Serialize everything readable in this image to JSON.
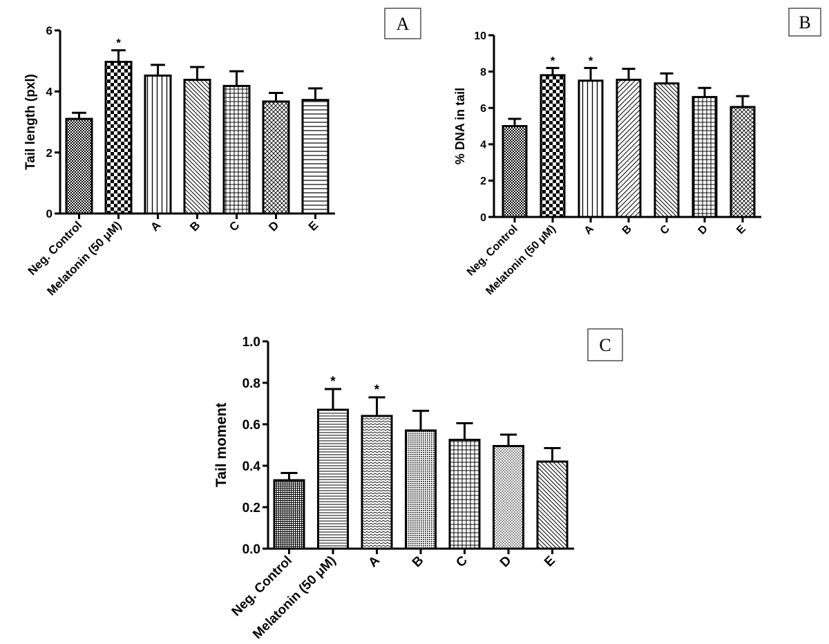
{
  "chart_data": [
    {
      "type": "bar",
      "panel": "A",
      "title": "",
      "xlabel": "",
      "ylabel": "Tail length (pxl)",
      "ylim": [
        0,
        6
      ],
      "yticks": [
        0,
        2,
        4,
        6
      ],
      "grid": false,
      "categories": [
        "Neg. Control",
        "Melatonin (50 μM)",
        "A",
        "B",
        "C",
        "D",
        "E"
      ],
      "values": [
        3.1,
        4.97,
        4.52,
        4.38,
        4.18,
        3.67,
        3.72
      ],
      "errors": [
        0.2,
        0.38,
        0.35,
        0.42,
        0.48,
        0.28,
        0.38
      ],
      "annotations": [
        "",
        "*",
        "",
        "",
        "",
        "",
        ""
      ]
    },
    {
      "type": "bar",
      "panel": "B",
      "title": "",
      "xlabel": "",
      "ylabel": "% DNA in tail",
      "ylim": [
        0,
        10
      ],
      "yticks": [
        0,
        2,
        4,
        6,
        8,
        10
      ],
      "grid": false,
      "categories": [
        "Neg. Control",
        "Melatonin (50 μM)",
        "A",
        "B",
        "C",
        "D",
        "E"
      ],
      "values": [
        5.0,
        7.8,
        7.5,
        7.55,
        7.35,
        6.6,
        6.05
      ],
      "errors": [
        0.4,
        0.4,
        0.7,
        0.6,
        0.55,
        0.5,
        0.6
      ],
      "annotations": [
        "",
        "*",
        "*",
        "",
        "",
        "",
        ""
      ]
    },
    {
      "type": "bar",
      "panel": "C",
      "title": "",
      "xlabel": "",
      "ylabel": "Tail moment",
      "ylim": [
        0,
        1.0
      ],
      "yticks": [
        "0.0",
        "0.2",
        "0.4",
        "0.6",
        "0.8",
        "1.0"
      ],
      "grid": false,
      "categories": [
        "Neg. Control",
        "Melatonin (50 μM)",
        "A",
        "B",
        "C",
        "D",
        "E"
      ],
      "values": [
        0.33,
        0.67,
        0.64,
        0.57,
        0.525,
        0.495,
        0.42
      ],
      "errors": [
        0.035,
        0.1,
        0.09,
        0.095,
        0.08,
        0.055,
        0.065
      ],
      "annotations": [
        "",
        "*",
        "*",
        "",
        "",
        "",
        ""
      ]
    }
  ]
}
